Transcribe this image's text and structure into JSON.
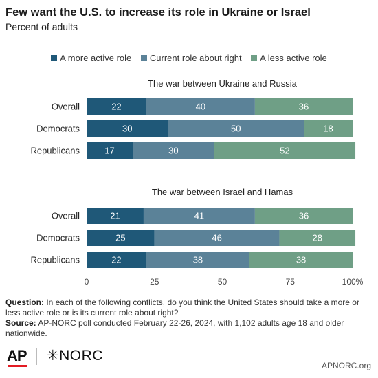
{
  "header": {
    "title": "Few want the U.S. to increase its role in Ukraine or Israel",
    "subtitle": "Percent of adults"
  },
  "colors": {
    "more_active": "#1f5878",
    "about_right": "#5b8298",
    "less_active": "#6f9f86",
    "text_light": "#ffffff",
    "axis_text": "#444444"
  },
  "chart_data": {
    "type": "bar",
    "orientation": "horizontal",
    "stacked": true,
    "xlim": [
      0,
      100
    ],
    "x_ticks": [
      0,
      25,
      50,
      75,
      100
    ],
    "x_tick_labels": [
      "0",
      "25",
      "50",
      "75",
      "100%"
    ],
    "legend": {
      "placement": "top",
      "entries": [
        "A more active role",
        "Current role about right",
        "A less active role"
      ]
    },
    "panels": [
      {
        "title": "The war between Ukraine and Russia",
        "categories": [
          "Overall",
          "Democrats",
          "Republicans"
        ],
        "series": [
          {
            "name": "A more active role",
            "values": [
              22,
              30,
              17
            ]
          },
          {
            "name": "Current role about right",
            "values": [
              40,
              50,
              30
            ]
          },
          {
            "name": "A less active role",
            "values": [
              36,
              18,
              52
            ]
          }
        ]
      },
      {
        "title": "The war between Israel and Hamas",
        "categories": [
          "Overall",
          "Democrats",
          "Republicans"
        ],
        "series": [
          {
            "name": "A more active role",
            "values": [
              21,
              25,
              22
            ]
          },
          {
            "name": "Current role about right",
            "values": [
              41,
              46,
              38
            ]
          },
          {
            "name": "A less active role",
            "values": [
              36,
              28,
              38
            ]
          }
        ]
      }
    ]
  },
  "notes": {
    "question_label": "Question:",
    "question_text": "In each of the following conflicts, do you think the United States should take a more or less active role or is its current role about right?",
    "source_label": "Source:",
    "source_text": "AP-NORC poll conducted February 22-26, 2024, with 1,102 adults age 18 and older nationwide."
  },
  "footer": {
    "logo_ap": "AP",
    "logo_norc": "✳NORC",
    "site": "APNORC.org"
  }
}
